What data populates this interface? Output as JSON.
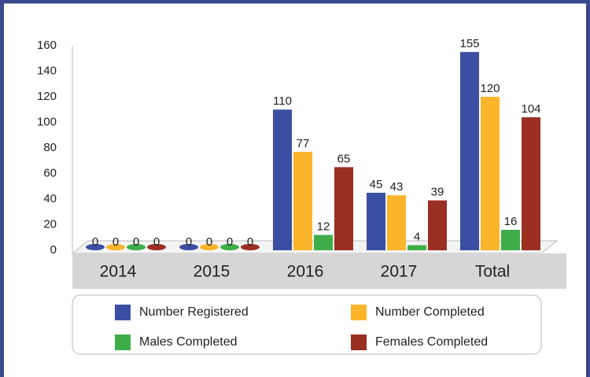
{
  "chart_data": {
    "type": "bar",
    "categories": [
      "2014",
      "2015",
      "2016",
      "2017",
      "Total"
    ],
    "series": [
      {
        "name": "Number Registered",
        "color": "#3a4fa3",
        "values": [
          0,
          0,
          110,
          45,
          155
        ]
      },
      {
        "name": "Number Completed",
        "color": "#fbb52b",
        "values": [
          0,
          0,
          77,
          43,
          120
        ]
      },
      {
        "name": "Males Completed",
        "color": "#3fae49",
        "values": [
          0,
          0,
          12,
          4,
          16
        ]
      },
      {
        "name": "Females Completed",
        "color": "#9b2f22",
        "values": [
          0,
          0,
          65,
          39,
          104
        ]
      }
    ],
    "ylim": [
      0,
      160
    ],
    "yticks": [
      0,
      20,
      40,
      60,
      80,
      100,
      120,
      140,
      160
    ],
    "legend": "bottom"
  }
}
